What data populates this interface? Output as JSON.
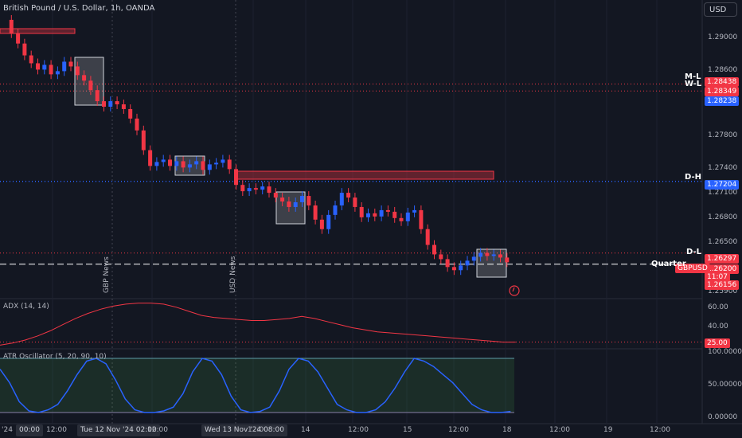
{
  "header": {
    "title": "British Pound / U.S. Dollar, 1h, OANDA",
    "currency": "USD"
  },
  "price_axis": {
    "ticks": [
      "1.29000",
      "1.28600",
      "1.27800",
      "1.27400",
      "1.27100",
      "1.26800",
      "1.26500",
      "1.25900"
    ]
  },
  "price_tags": [
    {
      "text": "1.28438",
      "color": "#f23645"
    },
    {
      "text": "1.28349",
      "color": "#f23645"
    },
    {
      "text": "1.28238",
      "color": "#2962ff"
    },
    {
      "text": "1.27204",
      "color": "#2962ff"
    },
    {
      "text": "1.26297",
      "color": "#f23645"
    },
    {
      "text": "1.26200",
      "color": "#f23645"
    },
    {
      "text": "11:07",
      "color": "#f23645"
    },
    {
      "text": "1.26156",
      "color": "#f23645"
    }
  ],
  "symbol_tag": "GBPUSD",
  "level_labels": [
    "M-L",
    "W-L",
    "D-H",
    "D-L",
    "Quarter"
  ],
  "news": [
    "GBP News",
    "USD News"
  ],
  "adx": {
    "label": "ADX (14, 14)",
    "ticks": [
      "60.00",
      "40.00"
    ],
    "current": "25.00"
  },
  "atr": {
    "label": "ATR Oscillator (5, 20, 90, 10)",
    "ticks": [
      "100.00000",
      "50.00000",
      "0.00000"
    ]
  },
  "time_axis": {
    "labels": [
      "'24",
      "12:00",
      "12:00",
      "12:00",
      "14",
      "12:00",
      "15",
      "12:00",
      "18",
      "12:00",
      "19",
      "12:00"
    ],
    "boxes": [
      "00:00",
      "Tue 12 Nov '24  02:00",
      "Wed 13 Nov '24  08:00"
    ]
  },
  "chart_data": {
    "type": "candlestick",
    "title": "British Pound / U.S. Dollar, 1h, OANDA",
    "ylim": [
      1.2575,
      1.2935
    ],
    "levels": [
      {
        "name": "M-L",
        "value": 1.28438
      },
      {
        "name": "W-L",
        "value": 1.28349
      },
      {
        "name": "D-H",
        "value": 1.27204
      },
      {
        "name": "D-L",
        "value": 1.26297
      },
      {
        "name": "Quarter",
        "value": 1.26156
      }
    ],
    "close_series": [
      1.2925,
      1.2908,
      1.2895,
      1.288,
      1.287,
      1.2862,
      1.2868,
      1.2856,
      1.286,
      1.2872,
      1.2866,
      1.2855,
      1.2848,
      1.2836,
      1.2822,
      1.2815,
      1.2822,
      1.2818,
      1.2812,
      1.28,
      1.2785,
      1.276,
      1.274,
      1.2745,
      1.2748,
      1.274,
      1.2746,
      1.2738,
      1.2742,
      1.2746,
      1.2735,
      1.2742,
      1.2744,
      1.2748,
      1.2736,
      1.2716,
      1.2708,
      1.2712,
      1.271,
      1.2714,
      1.2706,
      1.27,
      1.2695,
      1.2688,
      1.2694,
      1.2702,
      1.269,
      1.2672,
      1.266,
      1.2678,
      1.269,
      1.2706,
      1.27,
      1.2688,
      1.2675,
      1.268,
      1.2676,
      1.2684,
      1.2682,
      1.2674,
      1.267,
      1.2681,
      1.2684,
      1.266,
      1.264,
      1.2628,
      1.2622,
      1.2612,
      1.2608,
      1.2614,
      1.262,
      1.2625,
      1.263,
      1.2626,
      1.2628,
      1.2624,
      1.2618
    ],
    "adx_range": [
      20,
      65
    ],
    "atr_range": [
      0,
      100
    ]
  }
}
